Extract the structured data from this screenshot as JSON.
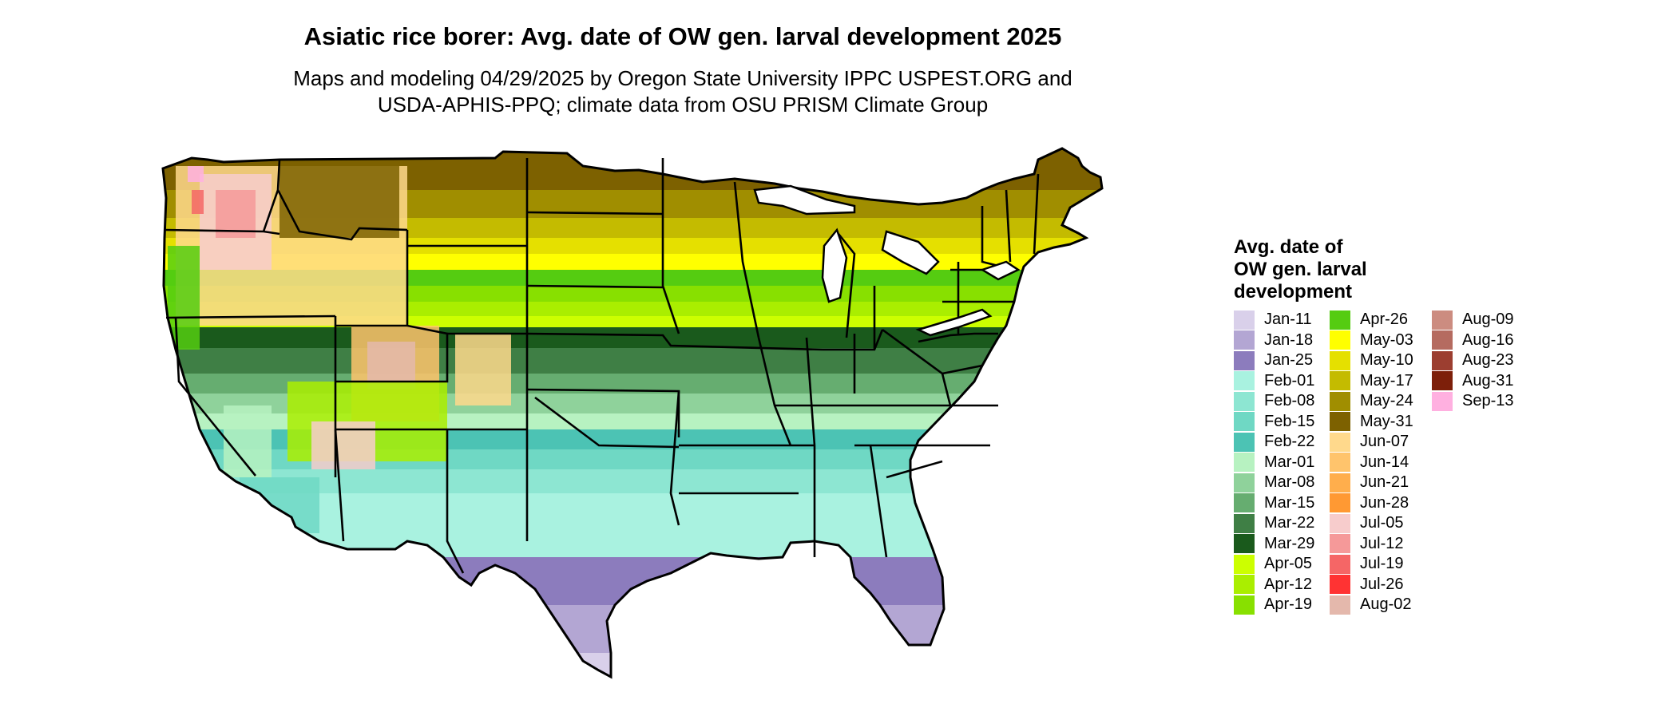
{
  "title": "Asiatic rice borer: Avg. date of OW gen. larval development 2025",
  "subtitle_lines": [
    "Maps and modeling 04/29/2025 by Oregon State University IPPC USPEST.ORG and",
    "USDA-APHIS-PPQ; climate data from OSU PRISM Climate Group"
  ],
  "legend": {
    "title_lines": [
      "Avg. date of",
      "OW gen. larval",
      "development"
    ],
    "items": [
      {
        "label": "Jan-11",
        "color": "#d9d0ea"
      },
      {
        "label": "Jan-18",
        "color": "#b3a6d3"
      },
      {
        "label": "Jan-25",
        "color": "#8c7cbd"
      },
      {
        "label": "Feb-01",
        "color": "#a9f2e0"
      },
      {
        "label": "Feb-08",
        "color": "#8de6d2"
      },
      {
        "label": "Feb-15",
        "color": "#6fd8c4"
      },
      {
        "label": "Feb-22",
        "color": "#4cc3b4"
      },
      {
        "label": "Mar-01",
        "color": "#b7f2c1"
      },
      {
        "label": "Mar-08",
        "color": "#8fd29b"
      },
      {
        "label": "Mar-15",
        "color": "#66ad70"
      },
      {
        "label": "Mar-22",
        "color": "#3f7f45"
      },
      {
        "label": "Mar-29",
        "color": "#1a5a1c"
      },
      {
        "label": "Apr-05",
        "color": "#ccff00"
      },
      {
        "label": "Apr-12",
        "color": "#aaee00"
      },
      {
        "label": "Apr-19",
        "color": "#88e000"
      },
      {
        "label": "Apr-26",
        "color": "#55cc11"
      },
      {
        "label": "May-03",
        "color": "#ffff00"
      },
      {
        "label": "May-10",
        "color": "#e5e000"
      },
      {
        "label": "May-17",
        "color": "#c4bb00"
      },
      {
        "label": "May-24",
        "color": "#a08e00"
      },
      {
        "label": "May-31",
        "color": "#7d6100"
      },
      {
        "label": "Jun-07",
        "color": "#ffd98c"
      },
      {
        "label": "Jun-14",
        "color": "#ffc46c"
      },
      {
        "label": "Jun-21",
        "color": "#ffae4c"
      },
      {
        "label": "Jun-28",
        "color": "#ff9933"
      },
      {
        "label": "Jul-05",
        "color": "#f7cccc"
      },
      {
        "label": "Jul-12",
        "color": "#f59999"
      },
      {
        "label": "Jul-19",
        "color": "#f56666"
      },
      {
        "label": "Jul-26",
        "color": "#ff3333"
      },
      {
        "label": "Aug-02",
        "color": "#e4b8ac"
      },
      {
        "label": "Aug-09",
        "color": "#cc8c80"
      },
      {
        "label": "Aug-16",
        "color": "#b56b60"
      },
      {
        "label": "Aug-23",
        "color": "#9c3e30"
      },
      {
        "label": "Aug-31",
        "color": "#7d1f0a"
      },
      {
        "label": "Sep-13",
        "color": "#ffb0e0"
      }
    ]
  },
  "map_colors": {
    "water": "#ffffff",
    "state_border": "#000000"
  }
}
